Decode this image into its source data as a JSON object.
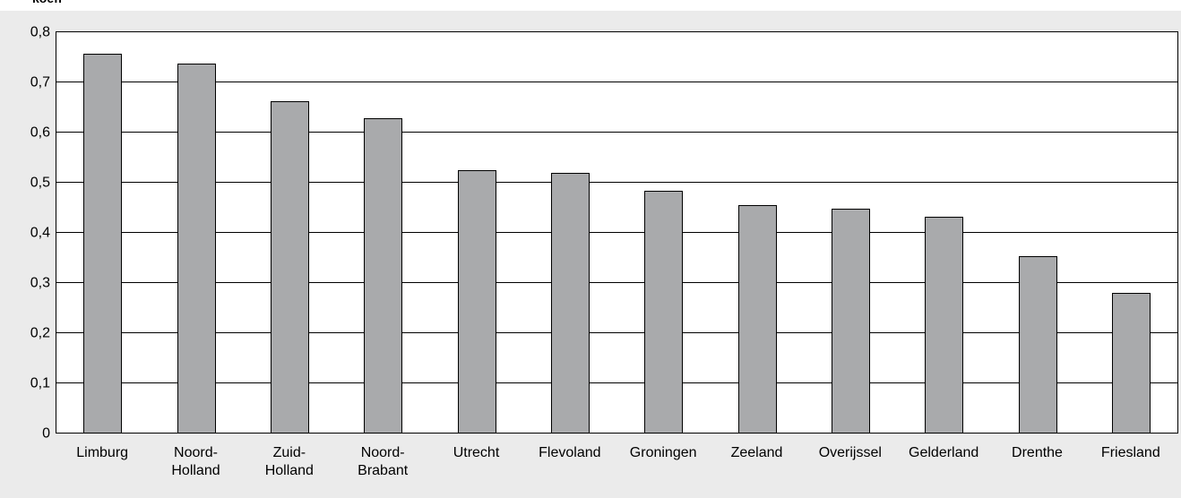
{
  "header": {
    "corner_text": "koeff"
  },
  "chart_data": {
    "type": "bar",
    "title": "",
    "xlabel": "",
    "ylabel": "",
    "ylim": [
      0,
      0.8
    ],
    "yticks": [
      {
        "value": 0,
        "label": "0"
      },
      {
        "value": 0.1,
        "label": "0,1"
      },
      {
        "value": 0.2,
        "label": "0,2"
      },
      {
        "value": 0.3,
        "label": "0,3"
      },
      {
        "value": 0.4,
        "label": "0,4"
      },
      {
        "value": 0.5,
        "label": "0,5"
      },
      {
        "value": 0.6,
        "label": "0,6"
      },
      {
        "value": 0.7,
        "label": "0,7"
      },
      {
        "value": 0.8,
        "label": "0,8"
      }
    ],
    "grid": true,
    "categories": [
      "Limburg",
      "Noord-Holland",
      "Zuid-Holland",
      "Noord-Brabant",
      "Utrecht",
      "Flevoland",
      "Groningen",
      "Zeeland",
      "Overijssel",
      "Gelderland",
      "Drenthe",
      "Friesland"
    ],
    "category_lines": [
      [
        "Limburg"
      ],
      [
        "Noord-",
        "Holland"
      ],
      [
        "Zuid-",
        "Holland"
      ],
      [
        "Noord-",
        "Brabant"
      ],
      [
        "Utrecht"
      ],
      [
        "Flevoland"
      ],
      [
        "Groningen"
      ],
      [
        "Zeeland"
      ],
      [
        "Overijssel"
      ],
      [
        "Gelderland"
      ],
      [
        "Drenthe"
      ],
      [
        "Friesland"
      ]
    ],
    "values": [
      0.755,
      0.735,
      0.66,
      0.627,
      0.523,
      0.517,
      0.483,
      0.453,
      0.447,
      0.43,
      0.352,
      0.278
    ],
    "colors": {
      "bar": "#a9aaac",
      "panel": "#ebebeb",
      "plot": "#ffffff"
    }
  }
}
